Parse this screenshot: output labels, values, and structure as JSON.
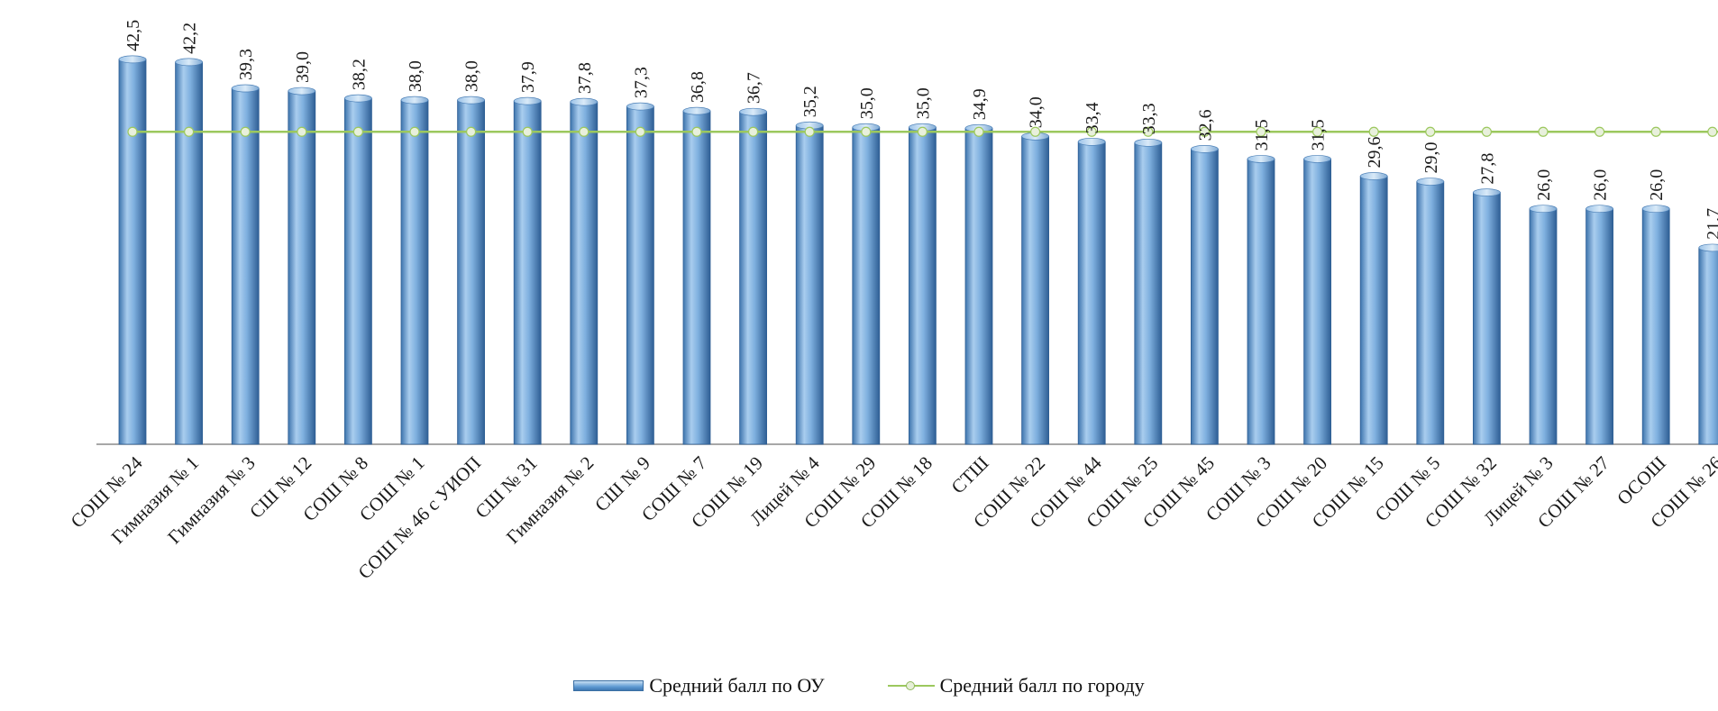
{
  "chart_data": {
    "type": "bar",
    "title": "",
    "xlabel": "",
    "ylabel": "",
    "ylim": [
      0,
      45
    ],
    "grid": false,
    "legend_position": "bottom",
    "categories": [
      "СОШ № 24",
      "Гимназия № 1",
      "Гимназия № 3",
      "СШ № 12",
      "СОШ № 8",
      "СОШ № 1",
      "СОШ № 46 с УИОП",
      "СШ № 31",
      "Гимназия № 2",
      "СШ № 9",
      "СОШ № 7",
      "СОШ № 19",
      "Лицей № 4",
      "СОШ № 29",
      "СОШ № 18",
      "СТШ",
      "СОШ № 22",
      "СОШ № 44",
      "СОШ № 25",
      "СОШ № 45",
      "СОШ № 3",
      "СОШ № 20",
      "СОШ № 15",
      "СОШ № 5",
      "СОШ № 32",
      "Лицей № 3",
      "СОШ № 27",
      "ОСОШ",
      "СОШ № 26"
    ],
    "series": [
      {
        "name": "Средний балл по ОУ",
        "type": "bar",
        "color": "#5f9ad3",
        "values": [
          42.5,
          42.2,
          39.3,
          39.0,
          38.2,
          38.0,
          38.0,
          37.9,
          37.8,
          37.3,
          36.8,
          36.7,
          35.2,
          35.0,
          35.0,
          34.9,
          34.0,
          33.4,
          33.3,
          32.6,
          31.5,
          31.5,
          29.6,
          29.0,
          27.8,
          26.0,
          26.0,
          26.0,
          21.7
        ]
      },
      {
        "name": "Средний балл по городу",
        "type": "line",
        "color": "#9cc85e",
        "values": [
          34.5,
          34.5,
          34.5,
          34.5,
          34.5,
          34.5,
          34.5,
          34.5,
          34.5,
          34.5,
          34.5,
          34.5,
          34.5,
          34.5,
          34.5,
          34.5,
          34.5,
          34.5,
          34.5,
          34.5,
          34.5,
          34.5,
          34.5,
          34.5,
          34.5,
          34.5,
          34.5,
          34.5,
          34.5
        ]
      }
    ],
    "data_labels": [
      "42,5",
      "42,2",
      "39,3",
      "39,0",
      "38,2",
      "38,0",
      "38,0",
      "37,9",
      "37,8",
      "37,3",
      "36,8",
      "36,7",
      "35,2",
      "35,0",
      "35,0",
      "34,9",
      "34,0",
      "33,4",
      "33,3",
      "32,6",
      "31,5",
      "31,5",
      "29,6",
      "29,0",
      "27,8",
      "26,0",
      "26,0",
      "26,0",
      "21,7"
    ]
  },
  "legend": {
    "bar_label": "Средний балл по ОУ",
    "line_label": "Средний балл по городу"
  }
}
